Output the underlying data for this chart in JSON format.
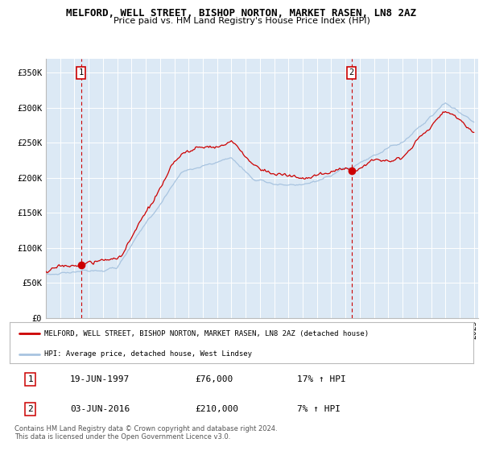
{
  "title": "MELFORD, WELL STREET, BISHOP NORTON, MARKET RASEN, LN8 2AZ",
  "subtitle": "Price paid vs. HM Land Registry's House Price Index (HPI)",
  "legend_line1": "MELFORD, WELL STREET, BISHOP NORTON, MARKET RASEN, LN8 2AZ (detached house)",
  "legend_line2": "HPI: Average price, detached house, West Lindsey",
  "transaction1_date": "19-JUN-1997",
  "transaction1_price": "£76,000",
  "transaction1_hpi": "17% ↑ HPI",
  "transaction2_date": "03-JUN-2016",
  "transaction2_price": "£210,000",
  "transaction2_hpi": "7% ↑ HPI",
  "footnote": "Contains HM Land Registry data © Crown copyright and database right 2024.\nThis data is licensed under the Open Government Licence v3.0.",
  "ylim": [
    0,
    370000
  ],
  "yticks": [
    0,
    50000,
    100000,
    150000,
    200000,
    250000,
    300000,
    350000
  ],
  "ytick_labels": [
    "£0",
    "£50K",
    "£100K",
    "£150K",
    "£200K",
    "£250K",
    "£300K",
    "£350K"
  ],
  "hpi_color": "#a8c4e0",
  "price_color": "#cc0000",
  "marker_color": "#cc0000",
  "bg_color": "#dce9f5",
  "grid_color": "#ffffff",
  "vline_color": "#cc0000",
  "marker1_x": 1997.46,
  "marker1_y": 76000,
  "marker2_x": 2016.42,
  "marker2_y": 210000,
  "vline1_x": 1997.46,
  "vline2_x": 2016.42,
  "xlim_start": 1995,
  "xlim_end": 2025.3
}
